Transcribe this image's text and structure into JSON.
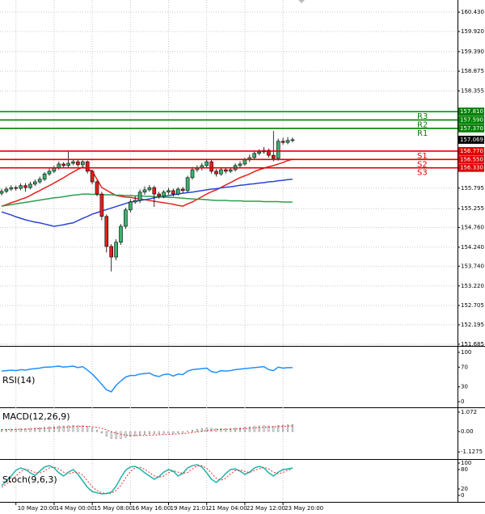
{
  "chart_data": [
    {
      "type": "candlestick",
      "categories": [
        null,
        null,
        null,
        "10 May 20:00",
        null,
        null,
        null,
        null,
        null,
        null,
        null,
        "14 May 00:00",
        null,
        null,
        null,
        null,
        null,
        null,
        null,
        "15 May 08:00",
        null,
        null,
        null,
        null,
        null,
        null,
        null,
        "16 May 16:00",
        null,
        null,
        null,
        null,
        null,
        null,
        null,
        "19 May 21:01",
        null,
        null,
        null,
        null,
        null,
        null,
        null,
        "21 May 04:00",
        null,
        null,
        null,
        null,
        null,
        null,
        null,
        "22 May 12:00",
        null,
        null,
        null,
        null,
        null,
        null,
        null,
        "23 May 20:00",
        null,
        null
      ],
      "open": [
        155.66,
        155.71,
        155.77,
        155.81,
        155.79,
        155.86,
        155.81,
        155.9,
        155.96,
        156.03,
        156.17,
        156.24,
        156.32,
        156.43,
        156.39,
        156.45,
        156.49,
        156.41,
        156.49,
        156.24,
        155.96,
        155.64,
        155.05,
        154.26,
        153.98,
        154.37,
        154.79,
        155.22,
        155.43,
        155.47,
        155.69,
        155.75,
        155.81,
        155.64,
        155.58,
        155.69,
        155.73,
        155.64,
        155.77,
        155.73,
        156.07,
        156.28,
        156.32,
        156.39,
        156.49,
        156.24,
        156.17,
        156.28,
        156.24,
        156.28,
        156.39,
        156.43,
        156.54,
        156.6,
        156.71,
        156.75,
        156.79,
        156.66,
        156.58,
        157.03,
        157.0,
        157.05
      ],
      "high": [
        155.78,
        155.83,
        155.87,
        155.86,
        155.92,
        155.93,
        155.96,
        156.02,
        156.1,
        156.22,
        156.31,
        156.38,
        156.5,
        156.48,
        156.77,
        156.55,
        156.54,
        156.53,
        156.52,
        156.28,
        156.0,
        155.7,
        155.1,
        154.32,
        154.45,
        154.85,
        155.28,
        155.5,
        155.58,
        155.76,
        155.84,
        155.88,
        155.86,
        155.7,
        155.74,
        155.8,
        155.78,
        155.82,
        155.83,
        156.12,
        156.35,
        156.4,
        156.46,
        156.56,
        156.54,
        156.3,
        156.34,
        156.33,
        156.34,
        156.45,
        156.5,
        156.6,
        156.68,
        156.78,
        156.82,
        156.88,
        156.84,
        157.3,
        157.1,
        157.12,
        157.14,
        157.13
      ],
      "low": [
        155.6,
        155.66,
        155.72,
        155.73,
        155.74,
        155.7,
        155.76,
        155.85,
        155.91,
        155.98,
        156.12,
        156.19,
        156.28,
        156.33,
        156.34,
        156.4,
        156.36,
        156.35,
        156.18,
        155.9,
        155.58,
        154.95,
        154.1,
        153.6,
        153.9,
        154.3,
        154.72,
        155.15,
        155.38,
        155.4,
        155.62,
        155.7,
        155.3,
        155.52,
        155.53,
        155.63,
        155.58,
        155.6,
        155.67,
        155.68,
        156.02,
        156.22,
        156.26,
        156.33,
        156.18,
        156.1,
        156.12,
        156.18,
        156.19,
        156.23,
        156.33,
        156.38,
        156.48,
        156.55,
        156.66,
        156.7,
        156.6,
        156.5,
        156.52,
        156.94,
        156.95,
        157.0
      ],
      "close": [
        155.71,
        155.77,
        155.81,
        155.79,
        155.86,
        155.81,
        155.9,
        155.96,
        156.03,
        156.17,
        156.24,
        156.32,
        156.43,
        156.39,
        156.45,
        156.49,
        156.41,
        156.49,
        156.24,
        155.96,
        155.64,
        155.05,
        154.26,
        153.98,
        154.37,
        154.79,
        155.22,
        155.43,
        155.47,
        155.69,
        155.75,
        155.81,
        155.64,
        155.58,
        155.69,
        155.73,
        155.64,
        155.77,
        155.73,
        156.07,
        156.28,
        156.32,
        156.39,
        156.49,
        156.24,
        156.17,
        156.28,
        156.24,
        156.28,
        156.39,
        156.43,
        156.54,
        156.6,
        156.71,
        156.75,
        156.79,
        156.66,
        156.58,
        157.03,
        157.0,
        157.05,
        157.07
      ],
      "up_color": "#3cb371",
      "down_color": "#e3201b",
      "series": [
        {
          "color": "#e8201b",
          "kind": "line",
          "values": [
            155.32,
            155.36,
            155.41,
            155.45,
            155.5,
            155.54,
            155.6,
            155.67,
            155.73,
            155.8,
            155.86,
            155.93,
            156.0,
            156.07,
            156.15,
            156.22,
            156.29,
            156.35,
            156.3,
            156.24,
            156.03,
            155.81,
            155.74,
            155.67,
            155.6,
            155.58,
            155.56,
            155.55,
            155.53,
            155.51,
            155.49,
            155.47,
            155.45,
            155.43,
            155.41,
            155.39,
            155.37,
            155.34,
            155.32,
            155.38,
            155.43,
            155.5,
            155.57,
            155.64,
            155.7,
            155.75,
            155.81,
            155.88,
            155.94,
            156.01,
            156.07,
            156.12,
            156.17,
            156.23,
            156.28,
            156.32,
            156.36,
            156.39,
            156.43,
            156.47,
            156.52,
            156.56
          ]
        },
        {
          "color": "#2a44d8",
          "kind": "line",
          "values": [
            155.17,
            155.13,
            155.09,
            155.04,
            155.0,
            154.96,
            154.93,
            154.9,
            154.88,
            154.85,
            154.82,
            154.79,
            154.81,
            154.83,
            154.86,
            154.88,
            154.94,
            155.0,
            155.05,
            155.11,
            155.15,
            155.19,
            155.23,
            155.27,
            155.31,
            155.35,
            155.39,
            155.43,
            155.45,
            155.47,
            155.49,
            155.51,
            155.54,
            155.56,
            155.58,
            155.6,
            155.62,
            155.64,
            155.66,
            155.68,
            155.69,
            155.71,
            155.73,
            155.75,
            155.77,
            155.78,
            155.8,
            155.82,
            155.83,
            155.85,
            155.87,
            155.88,
            155.9,
            155.91,
            155.93,
            155.94,
            155.96,
            155.97,
            155.99,
            156.0,
            156.02,
            156.03
          ]
        },
        {
          "color": "#2e9e4e",
          "kind": "line",
          "values": [
            155.32,
            155.34,
            155.36,
            155.38,
            155.4,
            155.42,
            155.44,
            155.46,
            155.48,
            155.5,
            155.52,
            155.54,
            155.55,
            155.57,
            155.59,
            155.61,
            155.62,
            155.64,
            155.64,
            155.63,
            155.63,
            155.62,
            155.62,
            155.62,
            155.61,
            155.61,
            155.6,
            155.6,
            155.59,
            155.59,
            155.58,
            155.58,
            155.57,
            155.56,
            155.56,
            155.55,
            155.55,
            155.54,
            155.53,
            155.52,
            155.51,
            155.5,
            155.5,
            155.49,
            155.48,
            155.47,
            155.47,
            155.47,
            155.46,
            155.46,
            155.46,
            155.45,
            155.45,
            155.45,
            155.45,
            155.44,
            155.44,
            155.44,
            155.44,
            155.43,
            155.43,
            155.43
          ]
        }
      ],
      "levels": [
        {
          "name": "R3",
          "value": 157.81,
          "label": "157.810",
          "color": "#008000"
        },
        {
          "name": "R2",
          "value": 157.59,
          "label": "157.590",
          "color": "#008000"
        },
        {
          "name": "R1",
          "value": 157.37,
          "label": "157.370",
          "color": "#008000"
        },
        {
          "name": "S1",
          "value": 156.77,
          "label": "156.770",
          "color": "#e00000"
        },
        {
          "name": "S2",
          "value": 156.55,
          "label": "156.550",
          "color": "#e00000"
        },
        {
          "name": "S3",
          "value": 156.33,
          "label": "156.330",
          "color": "#e00000"
        }
      ],
      "last_price": 157.069,
      "ylim": [
        151.64,
        160.75
      ],
      "yticks": [
        {
          "value": 160.43,
          "label": "160.430"
        },
        {
          "value": 159.92,
          "label": "159.920"
        },
        {
          "value": 159.39,
          "label": "159.390"
        },
        158.875,
        158.355,
        155.795,
        155.255,
        {
          "value": 154.76,
          "label": "154.760"
        },
        {
          "value": 154.24,
          "label": "154.240"
        },
        {
          "value": 153.74,
          "label": "153.740"
        },
        {
          "value": 153.22,
          "label": "153.220"
        },
        152.705,
        152.195,
        151.685
      ],
      "grid": true
    },
    {
      "type": "line",
      "title": "RSI(14)",
      "ylim": [
        -9.8,
        109.8
      ],
      "yticks": [
        100,
        70,
        30,
        0
      ],
      "series": [
        {
          "color": "#1e90ff",
          "kind": "line",
          "values": [
            62,
            63,
            64,
            63,
            65,
            64,
            66,
            67,
            68,
            70,
            70,
            71,
            72,
            70,
            71,
            72,
            69,
            71,
            64,
            56,
            46,
            35,
            24,
            20,
            33,
            42,
            50,
            53,
            53,
            56,
            57,
            58,
            53,
            51,
            55,
            56,
            52,
            56,
            55,
            62,
            65,
            66,
            67,
            68,
            61,
            59,
            63,
            62,
            63,
            65,
            66,
            67,
            68,
            69,
            70,
            71,
            65,
            63,
            70,
            68,
            69,
            69
          ]
        }
      ]
    },
    {
      "type": "bar",
      "title": "MACD(12,26,9)",
      "ylim": [
        -1.475,
        1.295
      ],
      "yticks": [
        1.072,
        {
          "value": 0,
          "label": "0.00"
        },
        -1.1275
      ],
      "series": [
        {
          "color": "#808080",
          "kind": "bar",
          "values": [
            0.12,
            0.13,
            0.14,
            0.14,
            0.16,
            0.16,
            0.18,
            0.19,
            0.21,
            0.24,
            0.26,
            0.28,
            0.31,
            0.31,
            0.33,
            0.34,
            0.33,
            0.33,
            0.28,
            0.2,
            0.08,
            -0.08,
            -0.26,
            -0.38,
            -0.4,
            -0.38,
            -0.32,
            -0.27,
            -0.24,
            -0.19,
            -0.16,
            -0.13,
            -0.13,
            -0.13,
            -0.11,
            -0.09,
            -0.09,
            -0.06,
            -0.05,
            0.02,
            0.08,
            0.12,
            0.16,
            0.2,
            0.18,
            0.16,
            0.17,
            0.16,
            0.17,
            0.19,
            0.21,
            0.24,
            0.26,
            0.29,
            0.31,
            0.33,
            0.31,
            0.29,
            0.34,
            0.35,
            0.37,
            0.38
          ]
        },
        {
          "color": "#e03030",
          "kind": "line",
          "dash": true,
          "values": [
            0.1,
            0.11,
            0.11,
            0.12,
            0.12,
            0.13,
            0.14,
            0.15,
            0.16,
            0.17,
            0.19,
            0.2,
            0.22,
            0.24,
            0.25,
            0.27,
            0.28,
            0.29,
            0.29,
            0.27,
            0.24,
            0.18,
            0.09,
            -0.01,
            -0.09,
            -0.15,
            -0.19,
            -0.21,
            -0.22,
            -0.22,
            -0.21,
            -0.2,
            -0.19,
            -0.18,
            -0.17,
            -0.16,
            -0.14,
            -0.13,
            -0.11,
            -0.09,
            -0.05,
            -0.02,
            0.02,
            0.05,
            0.08,
            0.1,
            0.11,
            0.12,
            0.13,
            0.14,
            0.15,
            0.17,
            0.18,
            0.2,
            0.22,
            0.24,
            0.25,
            0.26,
            0.27,
            0.29,
            0.3,
            0.32
          ]
        }
      ]
    },
    {
      "type": "line",
      "title": "Stoch(9,6,3)",
      "ylim": [
        -20,
        110
      ],
      "yticks": [
        100,
        80,
        20,
        0
      ],
      "series": [
        {
          "color": "#20b2aa",
          "kind": "line",
          "values": [
            30,
            45,
            60,
            78,
            85,
            80,
            70,
            62,
            75,
            88,
            92,
            85,
            70,
            60,
            72,
            80,
            65,
            45,
            25,
            12,
            8,
            5,
            6,
            10,
            28,
            55,
            78,
            88,
            90,
            82,
            70,
            60,
            50,
            58,
            72,
            80,
            75,
            60,
            68,
            85,
            92,
            95,
            88,
            70,
            50,
            40,
            52,
            68,
            80,
            82,
            75,
            65,
            72,
            85,
            90,
            85,
            70,
            60,
            72,
            80,
            82,
            85
          ]
        },
        {
          "color": "#e03030",
          "kind": "line",
          "dash": true,
          "values": [
            25,
            35,
            45,
            60,
            74,
            81,
            78,
            71,
            69,
            75,
            85,
            88,
            82,
            72,
            67,
            71,
            72,
            63,
            45,
            27,
            15,
            8,
            6,
            7,
            15,
            31,
            54,
            74,
            85,
            87,
            81,
            71,
            60,
            56,
            60,
            70,
            76,
            72,
            68,
            71,
            82,
            91,
            92,
            84,
            69,
            53,
            47,
            53,
            67,
            77,
            79,
            74,
            71,
            77,
            82,
            87,
            82,
            72,
            67,
            71,
            78,
            82
          ]
        }
      ]
    }
  ]
}
